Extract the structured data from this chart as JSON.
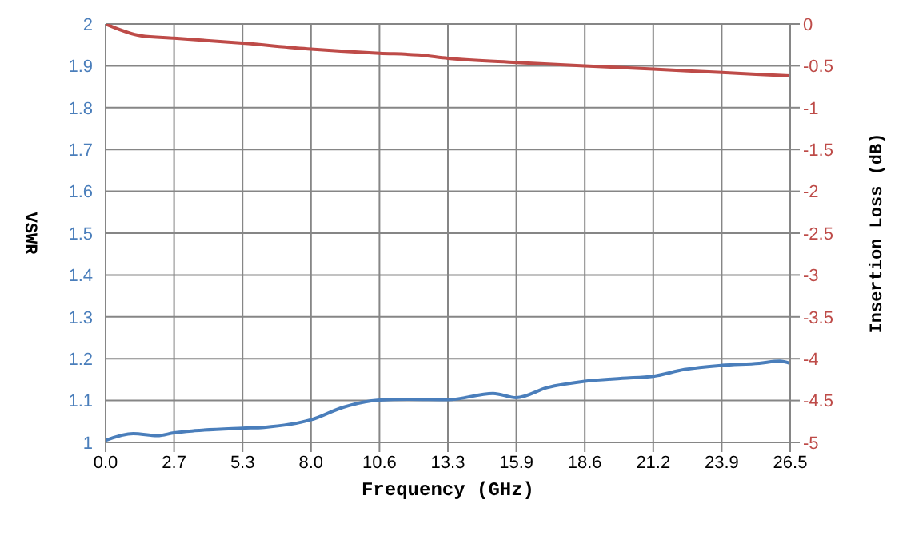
{
  "chart_data": {
    "type": "line",
    "xlabel": "Frequency (GHz)",
    "ylabel": "VSWR",
    "y2label": "Insertion Loss (dB)",
    "xlim": [
      0,
      26.5
    ],
    "xticks": [
      {
        "value": 0,
        "label": "0.0"
      },
      {
        "value": 2.65,
        "label": "2.7"
      },
      {
        "value": 5.3,
        "label": "5.3"
      },
      {
        "value": 7.95,
        "label": "8.0"
      },
      {
        "value": 10.6,
        "label": "10.6"
      },
      {
        "value": 13.25,
        "label": "13.3"
      },
      {
        "value": 15.9,
        "label": "15.9"
      },
      {
        "value": 18.55,
        "label": "18.6"
      },
      {
        "value": 21.2,
        "label": "21.2"
      },
      {
        "value": 23.85,
        "label": "23.9"
      },
      {
        "value": 26.5,
        "label": "26.5"
      }
    ],
    "ylim": [
      1,
      2
    ],
    "yticks": [
      1,
      1.1,
      1.2,
      1.3,
      1.4,
      1.5,
      1.6,
      1.7,
      1.8,
      1.9,
      2
    ],
    "y2lim": [
      -5,
      0
    ],
    "y2ticks": [
      -5,
      -4.5,
      -4,
      -3.5,
      -3,
      -2.5,
      -2,
      -1.5,
      -1,
      -0.5,
      0
    ],
    "grid": true,
    "marker": "none",
    "line_style": "solid",
    "series": [
      {
        "color": "#4a7ebb",
        "x": [
          0,
          1.07,
          2.0,
          2.65,
          3.45,
          5.3,
          6.13,
          7.95,
          9.2,
          10.6,
          11.7,
          13.25,
          15.0,
          15.9,
          17.1,
          18.55,
          20.0,
          21.2,
          22.4,
          23.85,
          25.3,
          26.1,
          26.5
        ],
        "values": [
          1.005,
          1.021,
          1.016,
          1.023,
          1.028,
          1.034,
          1.036,
          1.054,
          1.084,
          1.101,
          1.103,
          1.102,
          1.117,
          1.107,
          1.131,
          1.146,
          1.153,
          1.158,
          1.174,
          1.184,
          1.189,
          1.194,
          1.189
        ]
      },
      {
        "color": "#be4b48",
        "axis": "y2",
        "x": [
          0,
          1.36,
          2.65,
          5.3,
          7.95,
          10.6,
          12.1,
          13.25,
          15.9,
          18.55,
          21.2,
          23.85,
          26.5
        ],
        "values": [
          0,
          -0.14,
          -0.17,
          -0.23,
          -0.3,
          -0.35,
          -0.37,
          -0.41,
          -0.46,
          -0.5,
          -0.54,
          -0.58,
          -0.62
        ]
      }
    ]
  }
}
